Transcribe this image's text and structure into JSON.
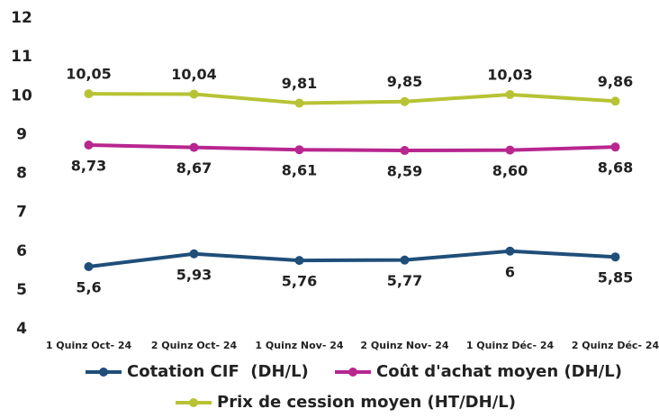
{
  "chart_data": {
    "type": "line",
    "categories": [
      "1 Quinz Oct- 24",
      "2 Quinz Oct- 24",
      "1 Quinz Nov- 24",
      "2 Quinz Nov- 24",
      "1 Quinz Déc- 24",
      "2 Quinz Déc- 24"
    ],
    "series": [
      {
        "name": "Cotation CIF  (DH/L)",
        "color": "#1f4e79",
        "values": [
          5.6,
          5.93,
          5.76,
          5.77,
          6,
          5.85
        ],
        "value_labels": [
          "5,6",
          "5,93",
          "5,76",
          "5,77",
          "6",
          "5,85"
        ]
      },
      {
        "name": "Coût d'achat moyen (DH/L)",
        "color": "#b8268f",
        "values": [
          8.73,
          8.67,
          8.61,
          8.59,
          8.6,
          8.68
        ],
        "value_labels": [
          "8,73",
          "8,67",
          "8,61",
          "8,59",
          "8,60",
          "8,68"
        ]
      },
      {
        "name": "Prix de cession moyen (HT/DH/L)",
        "color": "#b7c334",
        "values": [
          10.05,
          10.04,
          9.81,
          9.85,
          10.03,
          9.86
        ],
        "value_labels": [
          "10,05",
          "10,04",
          "9,81",
          "9,85",
          "10,03",
          "9,86"
        ]
      }
    ],
    "ylim": [
      4,
      12
    ],
    "yticks": [
      4,
      5,
      6,
      7,
      8,
      9,
      10,
      11,
      12
    ],
    "grid": false
  }
}
